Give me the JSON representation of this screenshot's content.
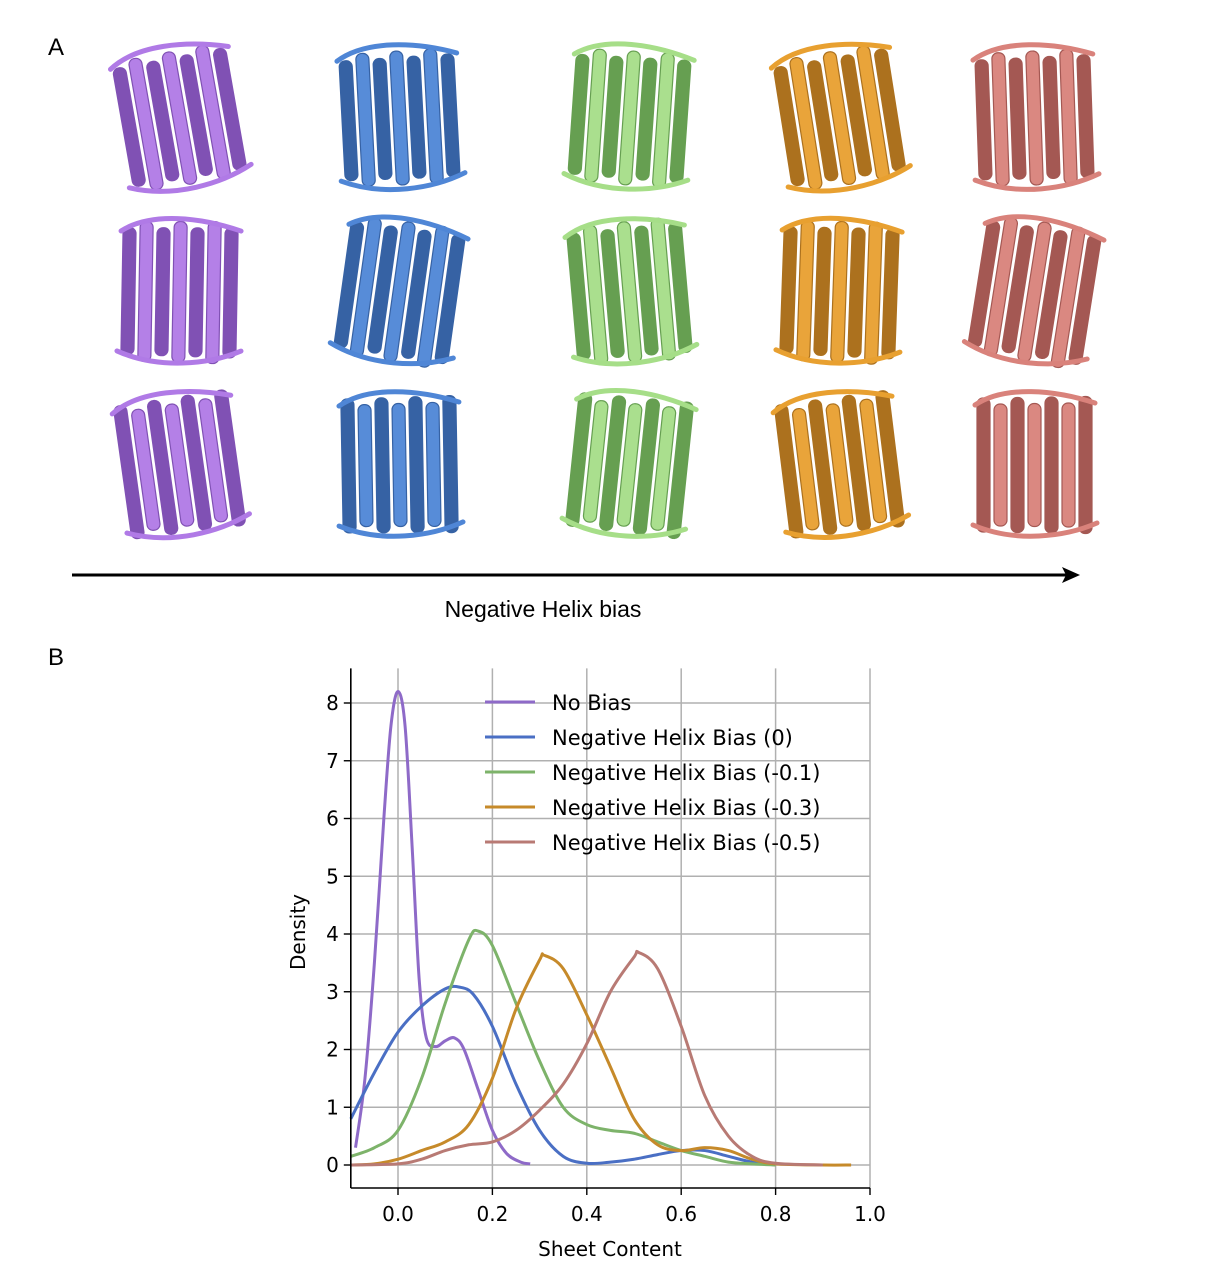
{
  "panel_a": {
    "label": "A",
    "arrow_label": "Negative Helix bias",
    "columns": [
      {
        "condition": "No Bias",
        "color": "#b07ae6",
        "dark": "#7a48b0"
      },
      {
        "condition": "Negative Helix Bias (0)",
        "color": "#4f86d6",
        "dark": "#2c5aa0"
      },
      {
        "condition": "Negative Helix Bias (-0.1)",
        "color": "#a6de88",
        "dark": "#5e9a48"
      },
      {
        "condition": "Negative Helix Bias (-0.3)",
        "color": "#e8a030",
        "dark": "#a86a12"
      },
      {
        "condition": "Negative Helix Bias (-0.5)",
        "color": "#d9827b",
        "dark": "#a0504a"
      }
    ],
    "rows": 3
  },
  "panel_b": {
    "label": "B"
  },
  "chart_data": {
    "type": "line",
    "title": "",
    "xlabel": "Sheet Content",
    "ylabel": "Density",
    "xlim": [
      -0.1,
      1.0
    ],
    "ylim": [
      -0.4,
      8.6
    ],
    "xticks": [
      0.0,
      0.2,
      0.4,
      0.6,
      0.8,
      1.0
    ],
    "xtick_labels": [
      "0.0",
      "0.2",
      "0.4",
      "0.6",
      "0.8",
      "1.0"
    ],
    "yticks": [
      0,
      1,
      2,
      3,
      4,
      5,
      6,
      7,
      8
    ],
    "ytick_labels": [
      "0",
      "1",
      "2",
      "3",
      "4",
      "5",
      "6",
      "7",
      "8"
    ],
    "grid": true,
    "legend_position": "top-right",
    "series": [
      {
        "name": "No Bias",
        "color": "#8e6ac8",
        "x": [
          -0.09,
          -0.07,
          -0.05,
          -0.03,
          -0.015,
          0,
          0.015,
          0.03,
          0.045,
          0.06,
          0.08,
          0.1,
          0.12,
          0.14,
          0.17,
          0.2,
          0.23,
          0.26,
          0.28
        ],
        "y": [
          0.3,
          1.5,
          3.5,
          6.0,
          7.6,
          8.2,
          7.6,
          5.5,
          3.2,
          2.2,
          2.05,
          2.15,
          2.2,
          2.0,
          1.3,
          0.6,
          0.2,
          0.05,
          0.02
        ]
      },
      {
        "name": "Negative Helix Bias (0)",
        "color": "#4a6fc4",
        "x": [
          -0.1,
          -0.05,
          0,
          0.05,
          0.1,
          0.13,
          0.16,
          0.2,
          0.25,
          0.3,
          0.35,
          0.4,
          0.45,
          0.5,
          0.55,
          0.6,
          0.65,
          0.7,
          0.75,
          0.8
        ],
        "y": [
          0.8,
          1.6,
          2.3,
          2.75,
          3.05,
          3.08,
          2.95,
          2.4,
          1.4,
          0.6,
          0.15,
          0.03,
          0.05,
          0.1,
          0.18,
          0.25,
          0.25,
          0.15,
          0.05,
          0.0
        ]
      },
      {
        "name": "Negative Helix Bias (-0.1)",
        "color": "#7db36a",
        "x": [
          -0.1,
          -0.05,
          0,
          0.05,
          0.1,
          0.15,
          0.17,
          0.2,
          0.25,
          0.3,
          0.35,
          0.4,
          0.45,
          0.5,
          0.55,
          0.6,
          0.65,
          0.7,
          0.75,
          0.8
        ],
        "y": [
          0.15,
          0.3,
          0.6,
          1.5,
          2.8,
          3.9,
          4.05,
          3.8,
          2.8,
          1.8,
          1.0,
          0.7,
          0.6,
          0.55,
          0.4,
          0.25,
          0.15,
          0.05,
          0.02,
          0.0
        ]
      },
      {
        "name": "Negative Helix Bias (-0.3)",
        "color": "#c68a2a",
        "x": [
          -0.1,
          -0.05,
          0,
          0.05,
          0.1,
          0.15,
          0.2,
          0.25,
          0.3,
          0.31,
          0.35,
          0.4,
          0.45,
          0.5,
          0.55,
          0.6,
          0.65,
          0.7,
          0.75,
          0.8,
          0.9,
          0.96
        ],
        "y": [
          0,
          0.02,
          0.1,
          0.25,
          0.4,
          0.7,
          1.5,
          2.7,
          3.55,
          3.63,
          3.4,
          2.6,
          1.7,
          0.8,
          0.35,
          0.25,
          0.3,
          0.25,
          0.1,
          0.02,
          0,
          0
        ]
      },
      {
        "name": "Negative Helix Bias (-0.5)",
        "color": "#b87a74",
        "x": [
          -0.1,
          0,
          0.05,
          0.1,
          0.15,
          0.2,
          0.25,
          0.3,
          0.35,
          0.4,
          0.45,
          0.5,
          0.51,
          0.55,
          0.6,
          0.65,
          0.7,
          0.75,
          0.8,
          0.9
        ],
        "y": [
          0,
          0.02,
          0.1,
          0.25,
          0.35,
          0.4,
          0.6,
          0.95,
          1.4,
          2.1,
          3.0,
          3.6,
          3.68,
          3.4,
          2.4,
          1.2,
          0.5,
          0.15,
          0.03,
          0
        ]
      }
    ]
  }
}
